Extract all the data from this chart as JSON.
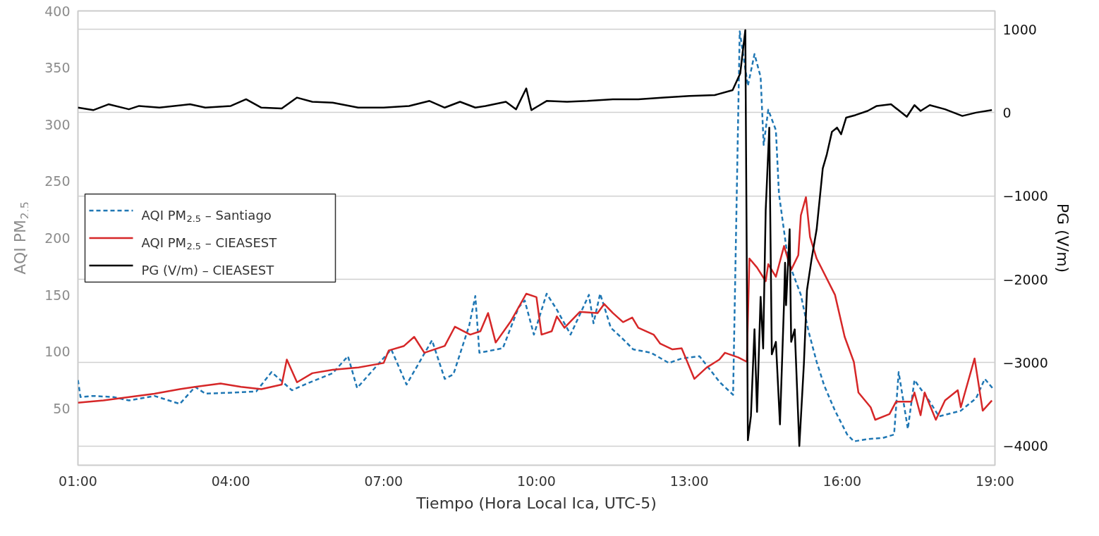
{
  "chart_data": {
    "type": "line",
    "xlabel": "Tiempo (Hora Local Ica, UTC-5)",
    "ylabel": "AQI PM$_{2.5}$",
    "y2label": "PG (V/m)",
    "xlim": [
      1,
      19
    ],
    "xticks": [
      {
        "value": 1,
        "label": "01:00"
      },
      {
        "value": 4,
        "label": "04:00"
      },
      {
        "value": 7,
        "label": "07:00"
      },
      {
        "value": 10,
        "label": "10:00"
      },
      {
        "value": 13,
        "label": "13:00"
      },
      {
        "value": 16,
        "label": "16:00"
      },
      {
        "value": 19,
        "label": "19:00"
      }
    ],
    "ylim": [
      0,
      400
    ],
    "yticks": [
      50,
      100,
      150,
      200,
      250,
      300,
      350,
      400
    ],
    "y2lim": [
      -4230,
      1220
    ],
    "y2ticks": [
      -4000,
      -3000,
      -2000,
      -1000,
      0,
      1000
    ],
    "grid": "y",
    "legend": "left",
    "series": [
      {
        "name": "AQI PM$_{2.5}$ – Santiago",
        "color": "#1f77b4",
        "line_style": "dashed",
        "x": [
          1.0,
          1.05,
          1.3,
          1.7,
          2.0,
          2.5,
          3.0,
          3.3,
          3.5,
          4.06,
          4.5,
          4.8,
          5.2,
          5.5,
          6.0,
          6.3,
          6.48,
          7.15,
          7.45,
          7.95,
          8.2,
          8.37,
          8.68,
          8.8,
          8.88,
          9.34,
          9.65,
          9.77,
          9.95,
          10.2,
          10.4,
          10.67,
          11.03,
          11.12,
          11.25,
          11.46,
          11.7,
          11.9,
          12.25,
          12.6,
          12.85,
          13.2,
          13.6,
          13.86,
          13.99,
          14.15,
          14.28,
          14.4,
          14.46,
          14.55,
          14.7,
          14.76,
          14.94,
          15.19,
          15.34,
          15.5,
          15.65,
          15.86,
          16.1,
          16.23,
          16.5,
          16.8,
          17.02,
          17.11,
          17.29,
          17.42,
          17.72,
          17.9,
          18.33,
          18.63,
          18.8,
          18.97
        ],
        "values": [
          75,
          60,
          61,
          60,
          57,
          61,
          54,
          69,
          63,
          64,
          65,
          82,
          66,
          72,
          81,
          96,
          68,
          102,
          71,
          110,
          76,
          80,
          123,
          149,
          99,
          103,
          139,
          145,
          115,
          151,
          137,
          115,
          150,
          125,
          151,
          121,
          111,
          102,
          99,
          90,
          94,
          96,
          73,
          62,
          382,
          334,
          362,
          342,
          282,
          313,
          295,
          239,
          180,
          150,
          118,
          91,
          70,
          48,
          27,
          21,
          23,
          24,
          27,
          82,
          32,
          75,
          56,
          43,
          48,
          59,
          76,
          67
        ]
      },
      {
        "name": "AQI PM$_{2.5}$ – CIEASEST",
        "color": "#d62728",
        "line_style": "solid",
        "x": [
          1.0,
          1.5,
          2.0,
          2.5,
          3.0,
          3.3,
          3.8,
          4.2,
          4.6,
          5.0,
          5.1,
          5.3,
          5.6,
          6.0,
          6.5,
          7.0,
          7.1,
          7.4,
          7.6,
          7.8,
          8.2,
          8.4,
          8.7,
          8.9,
          9.05,
          9.2,
          9.5,
          9.8,
          10.0,
          10.1,
          10.3,
          10.4,
          10.55,
          10.85,
          11.2,
          11.33,
          11.5,
          11.7,
          11.88,
          12.0,
          12.3,
          12.43,
          12.67,
          12.85,
          13.1,
          13.34,
          13.59,
          13.7,
          13.96,
          14.13,
          14.18,
          14.33,
          14.5,
          14.55,
          14.7,
          14.86,
          15.0,
          15.14,
          15.19,
          15.29,
          15.37,
          15.5,
          15.86,
          16.05,
          16.23,
          16.32,
          16.56,
          16.65,
          16.93,
          17.06,
          17.36,
          17.42,
          17.54,
          17.62,
          17.84,
          18.02,
          18.27,
          18.33,
          18.6,
          18.76,
          18.94
        ],
        "values": [
          55,
          57,
          60,
          63,
          67,
          69,
          72,
          69,
          67,
          71,
          93,
          73,
          81,
          84,
          86,
          90,
          101,
          105,
          113,
          99,
          105,
          122,
          115,
          118,
          134,
          108,
          127,
          151,
          148,
          115,
          118,
          131,
          121,
          135,
          134,
          142,
          134,
          126,
          130,
          121,
          115,
          107,
          102,
          103,
          76,
          86,
          93,
          99,
          95,
          91,
          182,
          174,
          162,
          177,
          166,
          193,
          172,
          185,
          220,
          236,
          201,
          182,
          150,
          113,
          91,
          64,
          51,
          40,
          45,
          56,
          56,
          64,
          44,
          64,
          40,
          57,
          66,
          51,
          94,
          48,
          57
        ]
      },
      {
        "name": "PG (V/m) – CIEASEST",
        "color": "#000000",
        "line_style": "solid",
        "axis": "y2",
        "x": [
          1.0,
          1.3,
          1.6,
          2.0,
          2.2,
          2.6,
          3.2,
          3.5,
          4.0,
          4.3,
          4.6,
          5.0,
          5.3,
          5.6,
          6.0,
          6.5,
          7.0,
          7.5,
          7.9,
          8.2,
          8.5,
          8.8,
          9.0,
          9.4,
          9.6,
          9.8,
          9.9,
          10.2,
          10.6,
          11.0,
          11.5,
          12.0,
          12.5,
          13.0,
          13.5,
          13.85,
          14.0,
          14.1,
          14.15,
          14.21,
          14.28,
          14.33,
          14.4,
          14.45,
          14.5,
          14.57,
          14.62,
          14.7,
          14.78,
          14.86,
          14.88,
          14.9,
          14.97,
          15.0,
          15.07,
          15.16,
          15.25,
          15.31,
          15.4,
          15.5,
          15.62,
          15.7,
          15.8,
          15.9,
          15.98,
          16.08,
          16.26,
          16.5,
          16.68,
          16.96,
          17.27,
          17.42,
          17.54,
          17.72,
          18.02,
          18.36,
          18.63,
          18.94
        ],
        "values": [
          60,
          30,
          100,
          40,
          80,
          60,
          100,
          60,
          80,
          160,
          60,
          50,
          180,
          130,
          120,
          60,
          60,
          80,
          140,
          60,
          130,
          60,
          80,
          130,
          40,
          290,
          30,
          140,
          130,
          140,
          160,
          160,
          180,
          200,
          210,
          270,
          470,
          990,
          -3930,
          -3640,
          -2600,
          -3590,
          -2210,
          -2830,
          -1170,
          -180,
          -2900,
          -2750,
          -3740,
          -2280,
          -1800,
          -2310,
          -1400,
          -2750,
          -2600,
          -4000,
          -3010,
          -2130,
          -1760,
          -1400,
          -670,
          -500,
          -230,
          -180,
          -260,
          -60,
          -30,
          20,
          80,
          100,
          -50,
          90,
          20,
          90,
          40,
          -40,
          0,
          30
        ]
      }
    ]
  }
}
